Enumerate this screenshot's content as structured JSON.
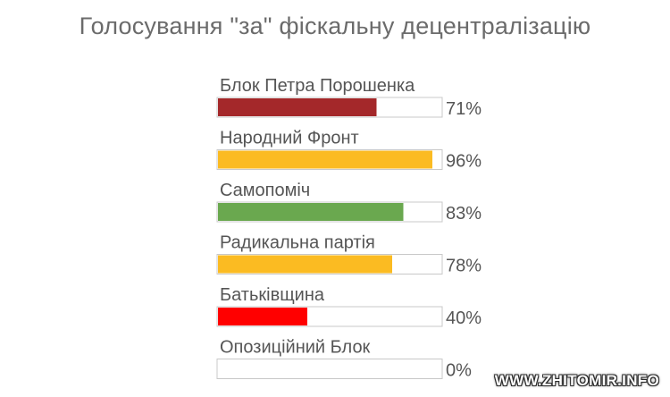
{
  "chart_data": {
    "type": "bar",
    "orientation": "horizontal",
    "title": "Голосування \"за\" фіскальну децентралізацію",
    "categories": [
      "Блок Петра Порошенка",
      "Народний Фронт",
      "Самопоміч",
      "Радикальна партія",
      "Батьківщина",
      "Опозиційний Блок"
    ],
    "values": [
      71,
      96,
      83,
      78,
      40,
      0
    ],
    "value_labels": [
      "71%",
      "96%",
      "83%",
      "78%",
      "40%",
      "0%"
    ],
    "colors": [
      "#a4282a",
      "#fbbb22",
      "#6aa84f",
      "#fbbb22",
      "#ff0000",
      "#ffffff"
    ],
    "xlim": [
      0,
      100
    ],
    "grid": false,
    "legend": "none"
  },
  "watermark": "WWW.ZHITOMIR.INFO"
}
